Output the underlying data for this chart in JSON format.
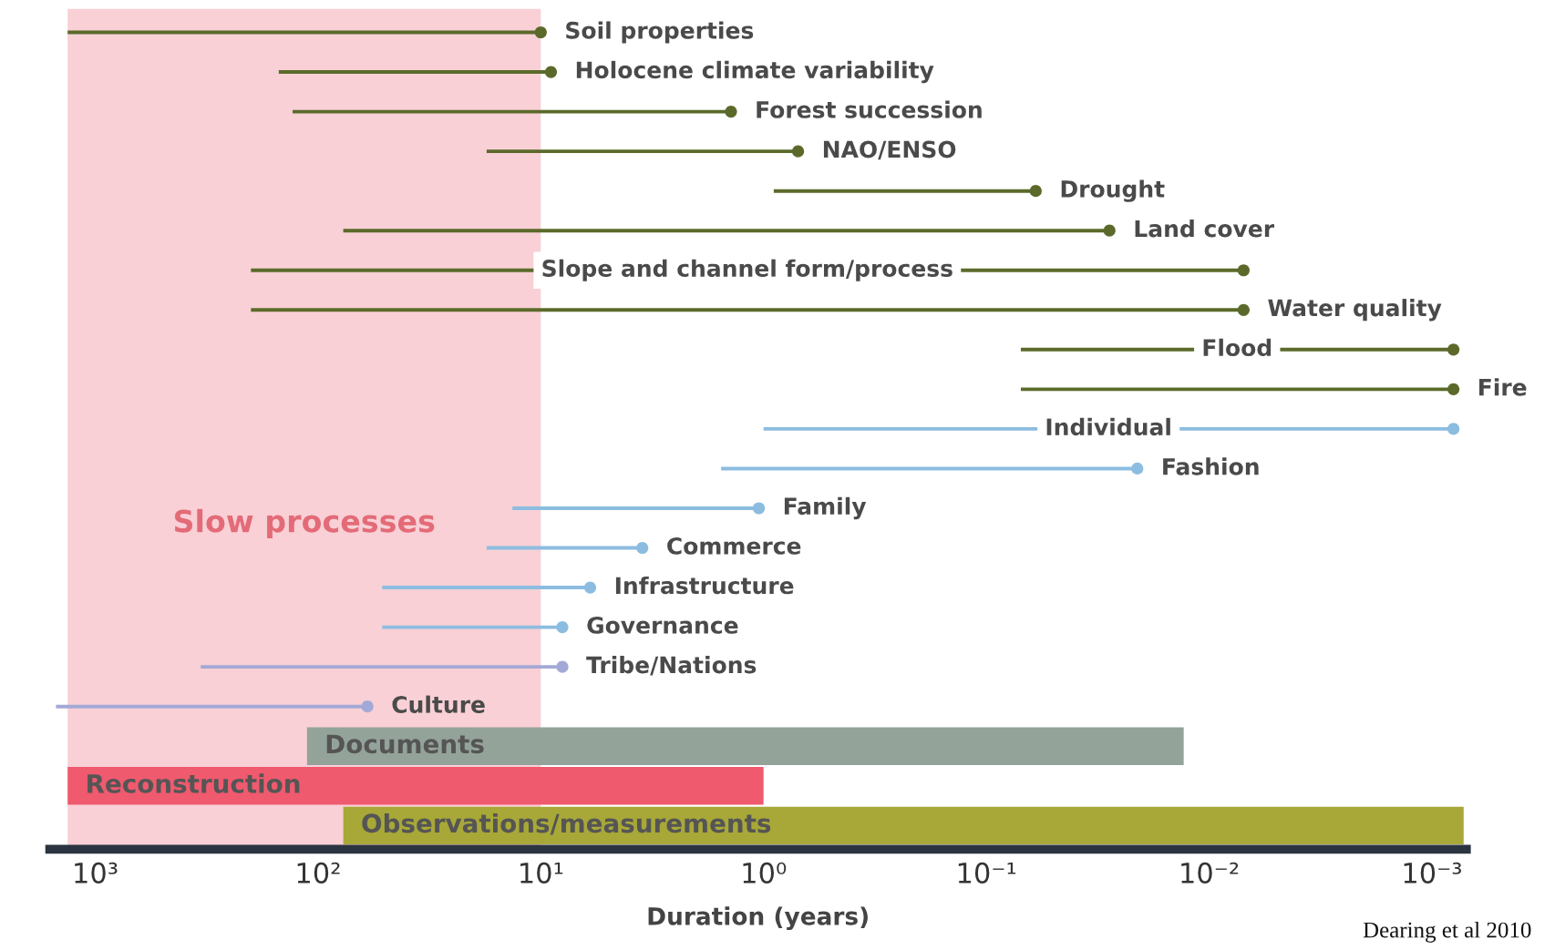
{
  "chart_data": {
    "type": "bar",
    "orientation": "horizontal",
    "log": "x",
    "xlabel": "Duration (years)",
    "categories": [
      "Soil properties",
      "Holocene climate variability",
      "Forest succession",
      "NAO/ENSO",
      "Drought",
      "Land cover",
      "Slope and channel form/process",
      "Water quality",
      "Flood",
      "Fire",
      "Individual",
      "Fashion",
      "Family",
      "Commerce",
      "Infrastructure",
      "Governance",
      "Tribe/Nations",
      "Culture",
      "Documents",
      "Reconstruction",
      "Observations/measurements"
    ],
    "series": [
      {
        "color": "#5b6a2a",
        "base": [
          10,
          9,
          1.4,
          0.7,
          0.06,
          0.028,
          0.007,
          0.007,
          0.0008,
          0.0008,
          null,
          null,
          null,
          null,
          null,
          null,
          null,
          null,
          null,
          null,
          null
        ],
        "values": [
          1320,
          141,
          128.6,
          16.8,
          0.84,
          76.972,
          199.993,
          199.993,
          0.0692,
          0.0692,
          null,
          null,
          null,
          null,
          null,
          null,
          null,
          null,
          null,
          null,
          null
        ]
      },
      {
        "color": "#8cbde0",
        "colors": [
          null,
          null,
          null,
          null,
          null,
          null,
          null,
          null,
          null,
          null,
          "#8cbde0",
          "#8cbde0",
          "#8cbde0",
          "#8cbde0",
          "#8cbde0",
          "#8cbde0",
          "#a3a9d6",
          "#a3a9d6",
          null,
          null,
          null
        ],
        "base": [
          null,
          null,
          null,
          null,
          null,
          null,
          null,
          null,
          null,
          null,
          0.0008,
          0.021,
          1.05,
          3.5,
          6,
          8,
          8,
          60,
          null,
          null,
          null
        ],
        "values": [
          null,
          null,
          null,
          null,
          null,
          null,
          null,
          null,
          null,
          null,
          0.9992,
          1.529,
          12.35,
          14,
          45.5,
          43.5,
          328,
          1440,
          null,
          null,
          null
        ]
      },
      {
        "colors": [
          null,
          null,
          null,
          null,
          null,
          null,
          null,
          null,
          null,
          null,
          null,
          null,
          null,
          null,
          null,
          null,
          null,
          null,
          "#94a39a",
          "#ef5a6e",
          "#a8a838"
        ],
        "base": [
          null,
          null,
          null,
          null,
          null,
          null,
          null,
          null,
          null,
          null,
          null,
          null,
          null,
          null,
          null,
          null,
          null,
          null,
          0.013,
          1.0,
          0.00072
        ],
        "values": [
          null,
          null,
          null,
          null,
          null,
          null,
          null,
          null,
          null,
          null,
          null,
          null,
          null,
          null,
          null,
          null,
          null,
          null,
          111.987,
          1329,
          76.99928
        ]
      },
      {
        "type": "scatter",
        "color": "#5b6a2a",
        "marker": "circle",
        "values": [
          10,
          9,
          1.4,
          0.7,
          0.06,
          0.028,
          0.007,
          0.007,
          0.0008,
          0.0008,
          null,
          null,
          null,
          null,
          null,
          null,
          null,
          null,
          null,
          null,
          null
        ]
      },
      {
        "type": "scatter",
        "colors": [
          null,
          null,
          null,
          null,
          null,
          null,
          null,
          null,
          null,
          null,
          "#8cbde0",
          "#8cbde0",
          "#8cbde0",
          "#8cbde0",
          "#8cbde0",
          "#8cbde0",
          "#a3a9d6",
          "#a3a9d6",
          null,
          null,
          null
        ],
        "marker": "circle",
        "values": [
          null,
          null,
          null,
          null,
          null,
          null,
          null,
          null,
          null,
          null,
          0.0008,
          0.021,
          1.05,
          3.5,
          6,
          8,
          8,
          60,
          null,
          null,
          null
        ]
      }
    ],
    "xlim": [
      1600,
      0.0007
    ],
    "xticks": [
      {
        "value": 1000,
        "label": "10³"
      },
      {
        "value": 100,
        "label": "10²"
      },
      {
        "value": 10,
        "label": "10¹"
      },
      {
        "value": 1,
        "label": "10⁰"
      },
      {
        "value": 0.1,
        "label": "10⁻¹"
      },
      {
        "value": 0.01,
        "label": "10⁻²"
      },
      {
        "value": 0.001,
        "label": "10⁻³"
      }
    ],
    "tick_labels": "x",
    "bands": [
      {
        "axis": "x",
        "from": 1330,
        "to": 10,
        "label": "Slow processes",
        "color": "#f8d0d6"
      }
    ],
    "grid": false,
    "legend": false,
    "annotations": [
      "Dearing et al 2010"
    ]
  }
}
